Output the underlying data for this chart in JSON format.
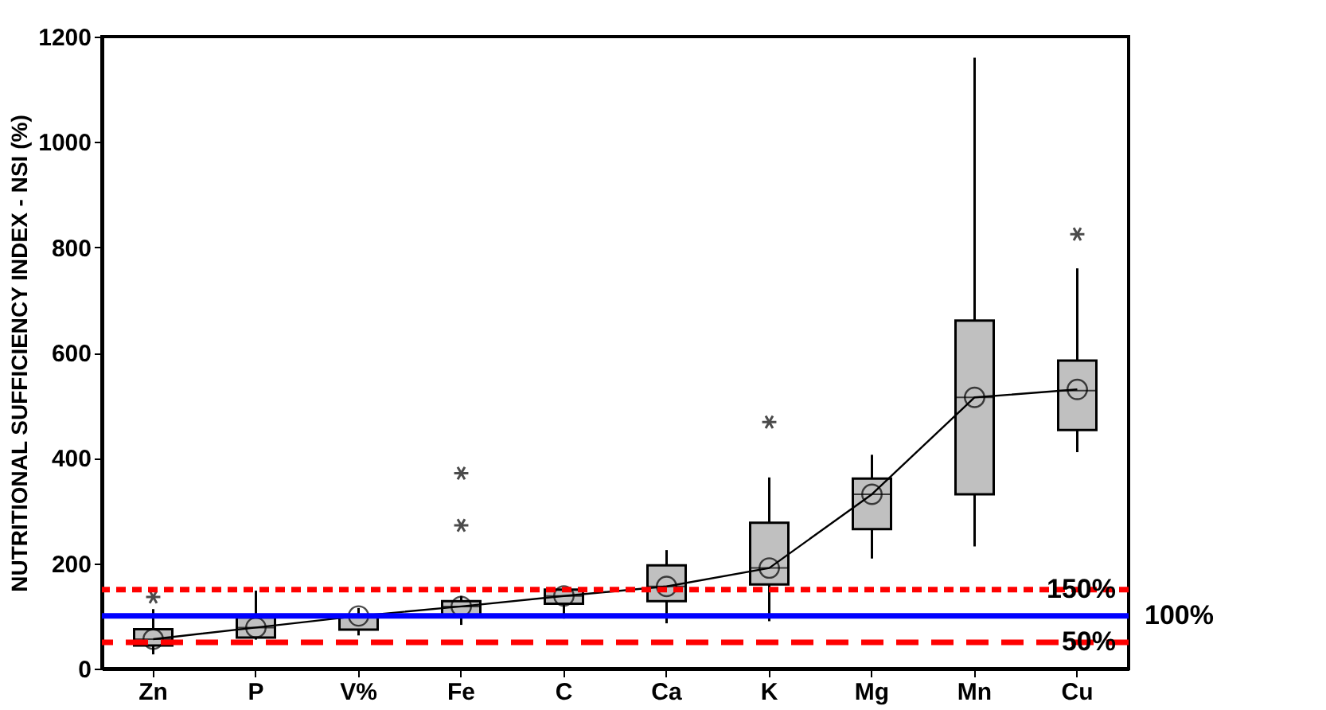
{
  "chart_data": {
    "type": "box",
    "ylabel": "NUTRITIONAL SUFFICIENCY INDEX - NSI (%)",
    "categories": [
      "Zn",
      "P",
      "V%",
      "Fe",
      "C",
      "Ca",
      "K",
      "Mg",
      "Mn",
      "Cu"
    ],
    "boxes": [
      {
        "low": 27,
        "q1": 44,
        "median": 56,
        "q3": 75,
        "high": 113,
        "outliers": [
          136
        ]
      },
      {
        "low": 55,
        "q1": 59,
        "median": 78,
        "q3": 97,
        "high": 148
      },
      {
        "low": 63,
        "q1": 74,
        "median": 100,
        "q3": 100,
        "high": 115
      },
      {
        "low": 83,
        "q1": 101,
        "median": 118,
        "q3": 128,
        "high": 138,
        "outliers": [
          272,
          371
        ]
      },
      {
        "low": 95,
        "q1": 123,
        "median": 138,
        "q3": 150,
        "high": 153
      },
      {
        "low": 86,
        "q1": 128,
        "median": 156,
        "q3": 196,
        "high": 225
      },
      {
        "low": 90,
        "q1": 160,
        "median": 191,
        "q3": 277,
        "high": 363,
        "outliers": [
          468
        ]
      },
      {
        "low": 209,
        "q1": 265,
        "median": 331,
        "q3": 361,
        "high": 406
      },
      {
        "low": 232,
        "q1": 331,
        "median": 515,
        "q3": 661,
        "high": 1160
      },
      {
        "low": 411,
        "q1": 453,
        "median": 528,
        "q3": 585,
        "high": 760,
        "outliers": [
          825
        ]
      }
    ],
    "series": [
      {
        "type": "line",
        "color": "#000000",
        "marker": "circle",
        "values": [
          56,
          78,
          100,
          118,
          138,
          156,
          191,
          331,
          515,
          530
        ]
      }
    ],
    "ylim": [
      0,
      1200
    ],
    "yticks": [
      0,
      200,
      400,
      600,
      800,
      1000,
      1200
    ],
    "grid": false,
    "ref_lines": [
      {
        "axis": "y",
        "value": 150,
        "label": "150%",
        "color": "#ff0000",
        "line_style": "dotted"
      },
      {
        "axis": "y",
        "value": 100,
        "label": "100%",
        "color": "#0000ff",
        "line_style": "solid"
      },
      {
        "axis": "y",
        "value": 50,
        "label": "50%",
        "color": "#ff0000",
        "line_style": "dashed"
      }
    ]
  }
}
